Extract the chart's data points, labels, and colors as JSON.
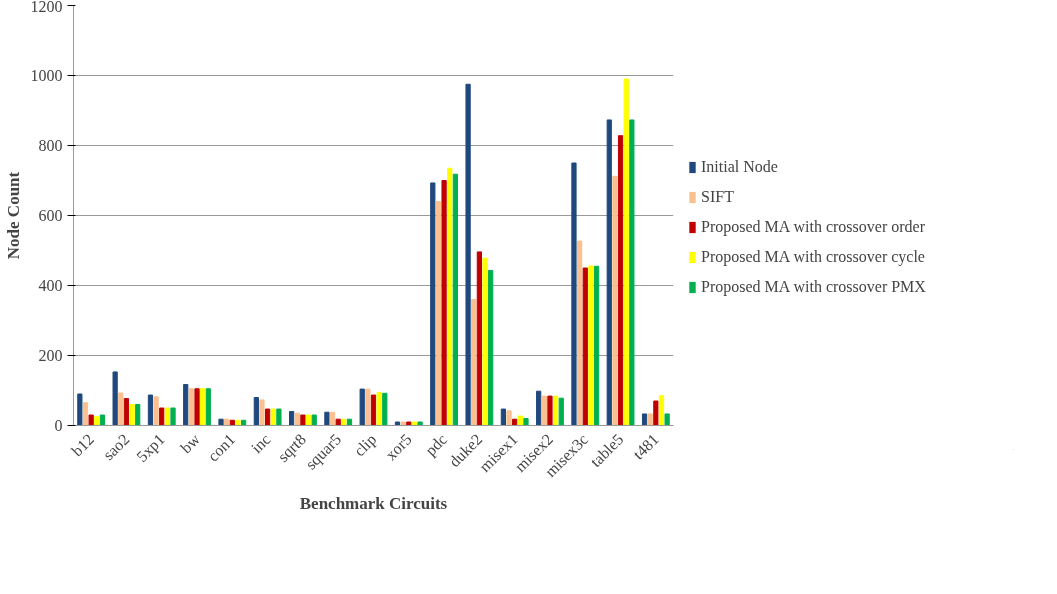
{
  "chart_data": {
    "type": "bar",
    "xlabel": "Benchmark Circuits",
    "ylabel": "Node Count",
    "categories": [
      "b12",
      "sao2",
      "5xp1",
      "bw",
      "con1",
      "inc",
      "sqrt8",
      "squar5",
      "clip",
      "xor5",
      "pdc",
      "duke2",
      "misex1",
      "misex2",
      "misex3c",
      "table5",
      "t481"
    ],
    "series": [
      {
        "name": "Initial Node",
        "color": "#1f497d",
        "values": [
          90,
          153,
          87,
          117,
          18,
          80,
          40,
          38,
          104,
          10,
          693,
          975,
          47,
          98,
          750,
          873,
          33
        ]
      },
      {
        "name": "SIFT",
        "color": "#fac090",
        "values": [
          65,
          93,
          82,
          105,
          18,
          73,
          35,
          38,
          104,
          10,
          640,
          360,
          42,
          84,
          527,
          712,
          33
        ]
      },
      {
        "name": "Proposed MA with crossover order",
        "color": "#c00000",
        "values": [
          30,
          77,
          50,
          105,
          15,
          47,
          30,
          18,
          87,
          10,
          700,
          496,
          18,
          84,
          450,
          828,
          70
        ]
      },
      {
        "name": "Proposed MA with crossover cycle",
        "color": "#ffff00",
        "values": [
          25,
          60,
          50,
          105,
          15,
          47,
          30,
          18,
          94,
          10,
          735,
          478,
          27,
          84,
          456,
          990,
          85
        ]
      },
      {
        "name": "Proposed MA with crossover PMX",
        "color": "#00b050",
        "values": [
          30,
          60,
          50,
          105,
          15,
          47,
          30,
          18,
          92,
          10,
          718,
          443,
          20,
          78,
          455,
          873,
          33
        ]
      }
    ],
    "ylim": [
      0,
      1200
    ],
    "yticks": [
      0,
      200,
      400,
      600,
      800,
      1000,
      1200
    ],
    "grid": "y",
    "legend": "right"
  }
}
